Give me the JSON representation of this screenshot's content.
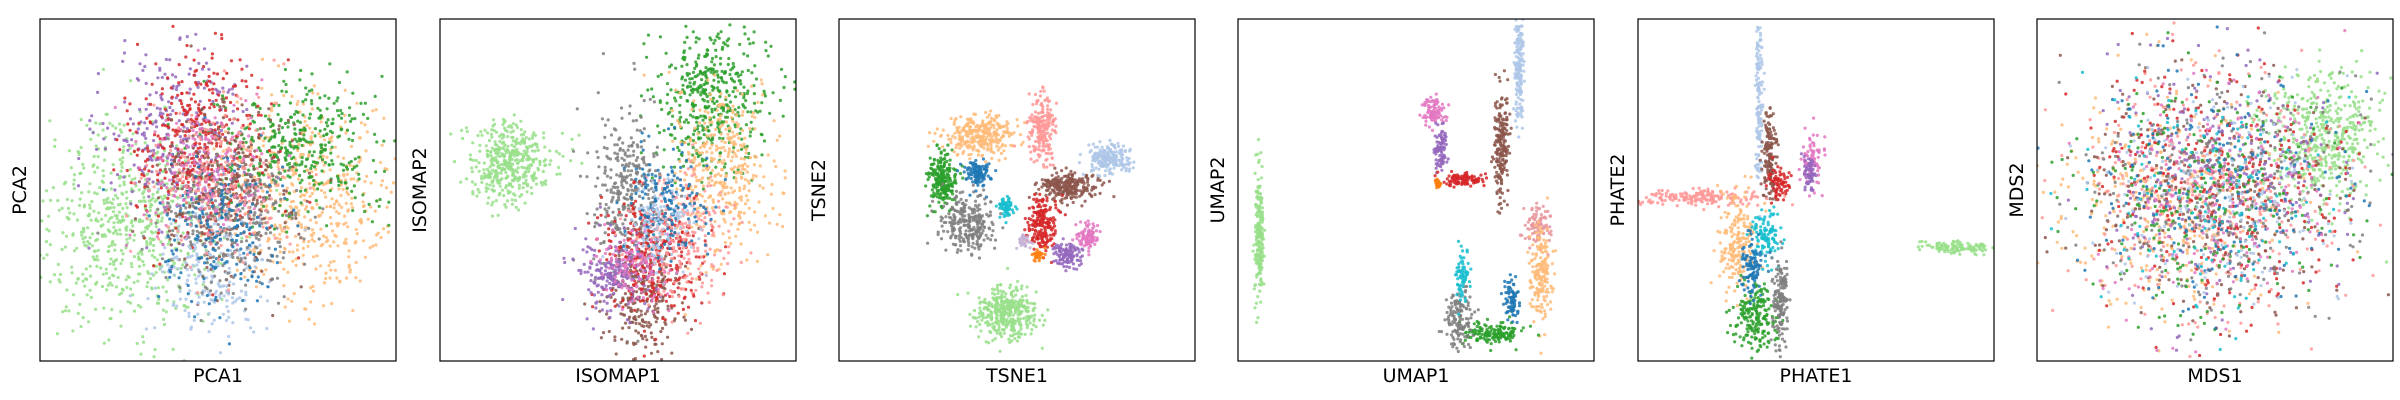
{
  "chart_data": [
    {
      "type": "scatter",
      "xlabel": "PCA1",
      "ylabel": "PCA2",
      "ticks": "none",
      "grid": false,
      "legend": "none",
      "clusters": [
        {
          "color": "#98df8a",
          "cx": 0.25,
          "cy": 0.4,
          "sx": 0.13,
          "sy": 0.15,
          "n": 650
        },
        {
          "color": "#ffbb78",
          "cx": 0.75,
          "cy": 0.48,
          "sx": 0.13,
          "sy": 0.14,
          "n": 520
        },
        {
          "color": "#2ca02c",
          "cx": 0.72,
          "cy": 0.62,
          "sx": 0.12,
          "sy": 0.1,
          "n": 380
        },
        {
          "color": "#9467bd",
          "cx": 0.38,
          "cy": 0.66,
          "sx": 0.1,
          "sy": 0.14,
          "n": 300
        },
        {
          "color": "#d62728",
          "cx": 0.45,
          "cy": 0.62,
          "sx": 0.1,
          "sy": 0.14,
          "n": 380
        },
        {
          "color": "#8c564b",
          "cx": 0.52,
          "cy": 0.5,
          "sx": 0.1,
          "sy": 0.12,
          "n": 320
        },
        {
          "color": "#aec7e8",
          "cx": 0.48,
          "cy": 0.28,
          "sx": 0.09,
          "sy": 0.1,
          "n": 220
        },
        {
          "color": "#7f7f7f",
          "cx": 0.55,
          "cy": 0.4,
          "sx": 0.1,
          "sy": 0.1,
          "n": 260
        },
        {
          "color": "#1f77b4",
          "cx": 0.5,
          "cy": 0.4,
          "sx": 0.09,
          "sy": 0.11,
          "n": 200
        },
        {
          "color": "#e377c2",
          "cx": 0.45,
          "cy": 0.55,
          "sx": 0.09,
          "sy": 0.1,
          "n": 160
        },
        {
          "color": "#ff9896",
          "cx": 0.5,
          "cy": 0.52,
          "sx": 0.1,
          "sy": 0.12,
          "n": 200
        }
      ]
    },
    {
      "type": "scatter",
      "xlabel": "ISOMAP1",
      "ylabel": "ISOMAP2",
      "ticks": "none",
      "grid": false,
      "legend": "none",
      "clusters": [
        {
          "color": "#98df8a",
          "cx": 0.2,
          "cy": 0.58,
          "sx": 0.06,
          "sy": 0.06,
          "n": 420
        },
        {
          "color": "#2ca02c",
          "cx": 0.76,
          "cy": 0.76,
          "sx": 0.08,
          "sy": 0.1,
          "n": 460
        },
        {
          "color": "#ffbb78",
          "cx": 0.8,
          "cy": 0.56,
          "sx": 0.07,
          "sy": 0.12,
          "n": 380
        },
        {
          "color": "#7f7f7f",
          "cx": 0.52,
          "cy": 0.5,
          "sx": 0.05,
          "sy": 0.13,
          "n": 300
        },
        {
          "color": "#8c564b",
          "cx": 0.57,
          "cy": 0.18,
          "sx": 0.05,
          "sy": 0.09,
          "n": 260
        },
        {
          "color": "#d62728",
          "cx": 0.6,
          "cy": 0.3,
          "sx": 0.07,
          "sy": 0.09,
          "n": 320
        },
        {
          "color": "#9467bd",
          "cx": 0.48,
          "cy": 0.26,
          "sx": 0.05,
          "sy": 0.06,
          "n": 200
        },
        {
          "color": "#ff9896",
          "cx": 0.68,
          "cy": 0.36,
          "sx": 0.07,
          "sy": 0.09,
          "n": 240
        },
        {
          "color": "#1f77b4",
          "cx": 0.64,
          "cy": 0.46,
          "sx": 0.06,
          "sy": 0.08,
          "n": 180
        },
        {
          "color": "#e377c2",
          "cx": 0.55,
          "cy": 0.28,
          "sx": 0.05,
          "sy": 0.06,
          "n": 120
        },
        {
          "color": "#aec7e8",
          "cx": 0.62,
          "cy": 0.4,
          "sx": 0.05,
          "sy": 0.06,
          "n": 110
        }
      ]
    },
    {
      "type": "scatter",
      "xlabel": "TSNE1",
      "ylabel": "TSNE2",
      "ticks": "none",
      "grid": false,
      "legend": "none",
      "clusters": [
        {
          "color": "#98df8a",
          "cx": 0.47,
          "cy": 0.14,
          "sx": 0.04,
          "sy": 0.04,
          "n": 360
        },
        {
          "color": "#2ca02c",
          "cx": 0.29,
          "cy": 0.53,
          "sx": 0.02,
          "sy": 0.04,
          "n": 240
        },
        {
          "color": "#7f7f7f",
          "cx": 0.36,
          "cy": 0.4,
          "sx": 0.04,
          "sy": 0.04,
          "n": 260
        },
        {
          "color": "#ffbb78",
          "cx": 0.4,
          "cy": 0.66,
          "sx": 0.05,
          "sy": 0.03,
          "n": 300
        },
        {
          "color": "#ff9896",
          "cx": 0.57,
          "cy": 0.68,
          "sx": 0.02,
          "sy": 0.05,
          "n": 200
        },
        {
          "color": "#8c564b",
          "cx": 0.64,
          "cy": 0.51,
          "sx": 0.04,
          "sy": 0.02,
          "n": 260
        },
        {
          "color": "#aec7e8",
          "cx": 0.76,
          "cy": 0.59,
          "sx": 0.03,
          "sy": 0.02,
          "n": 200
        },
        {
          "color": "#d62728",
          "cx": 0.57,
          "cy": 0.4,
          "sx": 0.02,
          "sy": 0.04,
          "n": 200
        },
        {
          "color": "#1f77b4",
          "cx": 0.39,
          "cy": 0.55,
          "sx": 0.02,
          "sy": 0.02,
          "n": 110
        },
        {
          "color": "#9467bd",
          "cx": 0.64,
          "cy": 0.31,
          "sx": 0.02,
          "sy": 0.02,
          "n": 110
        },
        {
          "color": "#e377c2",
          "cx": 0.7,
          "cy": 0.36,
          "sx": 0.015,
          "sy": 0.02,
          "n": 90
        },
        {
          "color": "#17becf",
          "cx": 0.47,
          "cy": 0.45,
          "sx": 0.01,
          "sy": 0.015,
          "n": 60
        },
        {
          "color": "#ff7f0e",
          "cx": 0.56,
          "cy": 0.31,
          "sx": 0.01,
          "sy": 0.01,
          "n": 30
        },
        {
          "color": "#c5b0d5",
          "cx": 0.52,
          "cy": 0.35,
          "sx": 0.01,
          "sy": 0.01,
          "n": 30
        }
      ]
    },
    {
      "type": "scatter",
      "xlabel": "UMAP1",
      "ylabel": "UMAP2",
      "ticks": "none",
      "grid": false,
      "legend": "none",
      "clusters": [
        {
          "color": "#98df8a",
          "cx": 0.06,
          "cy": 0.38,
          "sx": 0.006,
          "sy": 0.1,
          "n": 200
        },
        {
          "color": "#aec7e8",
          "cx": 0.79,
          "cy": 0.86,
          "sx": 0.006,
          "sy": 0.08,
          "n": 160
        },
        {
          "color": "#8c564b",
          "cx": 0.74,
          "cy": 0.63,
          "sx": 0.01,
          "sy": 0.08,
          "n": 200
        },
        {
          "color": "#e377c2",
          "cx": 0.55,
          "cy": 0.73,
          "sx": 0.015,
          "sy": 0.02,
          "n": 90
        },
        {
          "color": "#9467bd",
          "cx": 0.57,
          "cy": 0.62,
          "sx": 0.01,
          "sy": 0.03,
          "n": 90
        },
        {
          "color": "#d62728",
          "cx": 0.63,
          "cy": 0.53,
          "sx": 0.03,
          "sy": 0.01,
          "n": 110
        },
        {
          "color": "#ff7f0e",
          "cx": 0.56,
          "cy": 0.52,
          "sx": 0.005,
          "sy": 0.01,
          "n": 20
        },
        {
          "color": "#e7969c",
          "cx": 0.84,
          "cy": 0.39,
          "sx": 0.02,
          "sy": 0.03,
          "n": 90
        },
        {
          "color": "#ffbb78",
          "cx": 0.85,
          "cy": 0.25,
          "sx": 0.015,
          "sy": 0.07,
          "n": 180
        },
        {
          "color": "#2ca02c",
          "cx": 0.72,
          "cy": 0.08,
          "sx": 0.04,
          "sy": 0.015,
          "n": 160
        },
        {
          "color": "#7f7f7f",
          "cx": 0.62,
          "cy": 0.13,
          "sx": 0.02,
          "sy": 0.04,
          "n": 130
        },
        {
          "color": "#17becf",
          "cx": 0.63,
          "cy": 0.25,
          "sx": 0.01,
          "sy": 0.04,
          "n": 70
        },
        {
          "color": "#1f77b4",
          "cx": 0.77,
          "cy": 0.18,
          "sx": 0.01,
          "sy": 0.03,
          "n": 80
        }
      ]
    },
    {
      "type": "scatter",
      "xlabel": "PHATE1",
      "ylabel": "PHATE2",
      "ticks": "none",
      "grid": false,
      "legend": "none",
      "clusters": [
        {
          "color": "#aec7e8",
          "cx": 0.34,
          "cy": 0.76,
          "sx": 0.005,
          "sy": 0.14,
          "n": 150
        },
        {
          "color": "#8c564b",
          "cx": 0.37,
          "cy": 0.61,
          "sx": 0.01,
          "sy": 0.07,
          "n": 150
        },
        {
          "color": "#ff9896",
          "cx": 0.18,
          "cy": 0.48,
          "sx": 0.09,
          "sy": 0.012,
          "n": 170
        },
        {
          "color": "#98df8a",
          "cx": 0.89,
          "cy": 0.33,
          "sx": 0.05,
          "sy": 0.01,
          "n": 120
        },
        {
          "color": "#e377c2",
          "cx": 0.49,
          "cy": 0.59,
          "sx": 0.015,
          "sy": 0.04,
          "n": 80
        },
        {
          "color": "#9467bd",
          "cx": 0.48,
          "cy": 0.55,
          "sx": 0.01,
          "sy": 0.03,
          "n": 60
        },
        {
          "color": "#ffbb78",
          "cx": 0.28,
          "cy": 0.35,
          "sx": 0.025,
          "sy": 0.08,
          "n": 200
        },
        {
          "color": "#17becf",
          "cx": 0.36,
          "cy": 0.36,
          "sx": 0.02,
          "sy": 0.04,
          "n": 110
        },
        {
          "color": "#2ca02c",
          "cx": 0.33,
          "cy": 0.13,
          "sx": 0.03,
          "sy": 0.05,
          "n": 200
        },
        {
          "color": "#7f7f7f",
          "cx": 0.4,
          "cy": 0.18,
          "sx": 0.01,
          "sy": 0.07,
          "n": 150
        },
        {
          "color": "#1f77b4",
          "cx": 0.32,
          "cy": 0.28,
          "sx": 0.015,
          "sy": 0.05,
          "n": 100
        },
        {
          "color": "#d62728",
          "cx": 0.4,
          "cy": 0.52,
          "sx": 0.015,
          "sy": 0.03,
          "n": 70
        }
      ]
    },
    {
      "type": "scatter",
      "xlabel": "MDS1",
      "ylabel": "MDS2",
      "ticks": "none",
      "grid": false,
      "legend": "none",
      "clusters": [
        {
          "color": "#98df8a",
          "cx": 0.8,
          "cy": 0.65,
          "sx": 0.08,
          "sy": 0.1,
          "n": 500
        },
        {
          "color": "#ffbb78",
          "cx": 0.38,
          "cy": 0.45,
          "sx": 0.16,
          "sy": 0.17,
          "n": 380
        },
        {
          "color": "#ff9896",
          "cx": 0.5,
          "cy": 0.5,
          "sx": 0.18,
          "sy": 0.18,
          "n": 340
        },
        {
          "color": "#d62728",
          "cx": 0.5,
          "cy": 0.52,
          "sx": 0.18,
          "sy": 0.18,
          "n": 300
        },
        {
          "color": "#8c564b",
          "cx": 0.5,
          "cy": 0.5,
          "sx": 0.18,
          "sy": 0.18,
          "n": 260
        },
        {
          "color": "#9467bd",
          "cx": 0.5,
          "cy": 0.55,
          "sx": 0.18,
          "sy": 0.18,
          "n": 240
        },
        {
          "color": "#7f7f7f",
          "cx": 0.5,
          "cy": 0.48,
          "sx": 0.18,
          "sy": 0.18,
          "n": 260
        },
        {
          "color": "#2ca02c",
          "cx": 0.48,
          "cy": 0.46,
          "sx": 0.18,
          "sy": 0.18,
          "n": 240
        },
        {
          "color": "#1f77b4",
          "cx": 0.5,
          "cy": 0.5,
          "sx": 0.18,
          "sy": 0.18,
          "n": 200
        },
        {
          "color": "#aec7e8",
          "cx": 0.5,
          "cy": 0.5,
          "sx": 0.18,
          "sy": 0.18,
          "n": 180
        },
        {
          "color": "#e377c2",
          "cx": 0.5,
          "cy": 0.5,
          "sx": 0.18,
          "sy": 0.18,
          "n": 170
        },
        {
          "color": "#17becf",
          "cx": 0.5,
          "cy": 0.5,
          "sx": 0.18,
          "sy": 0.18,
          "n": 120
        }
      ]
    }
  ]
}
